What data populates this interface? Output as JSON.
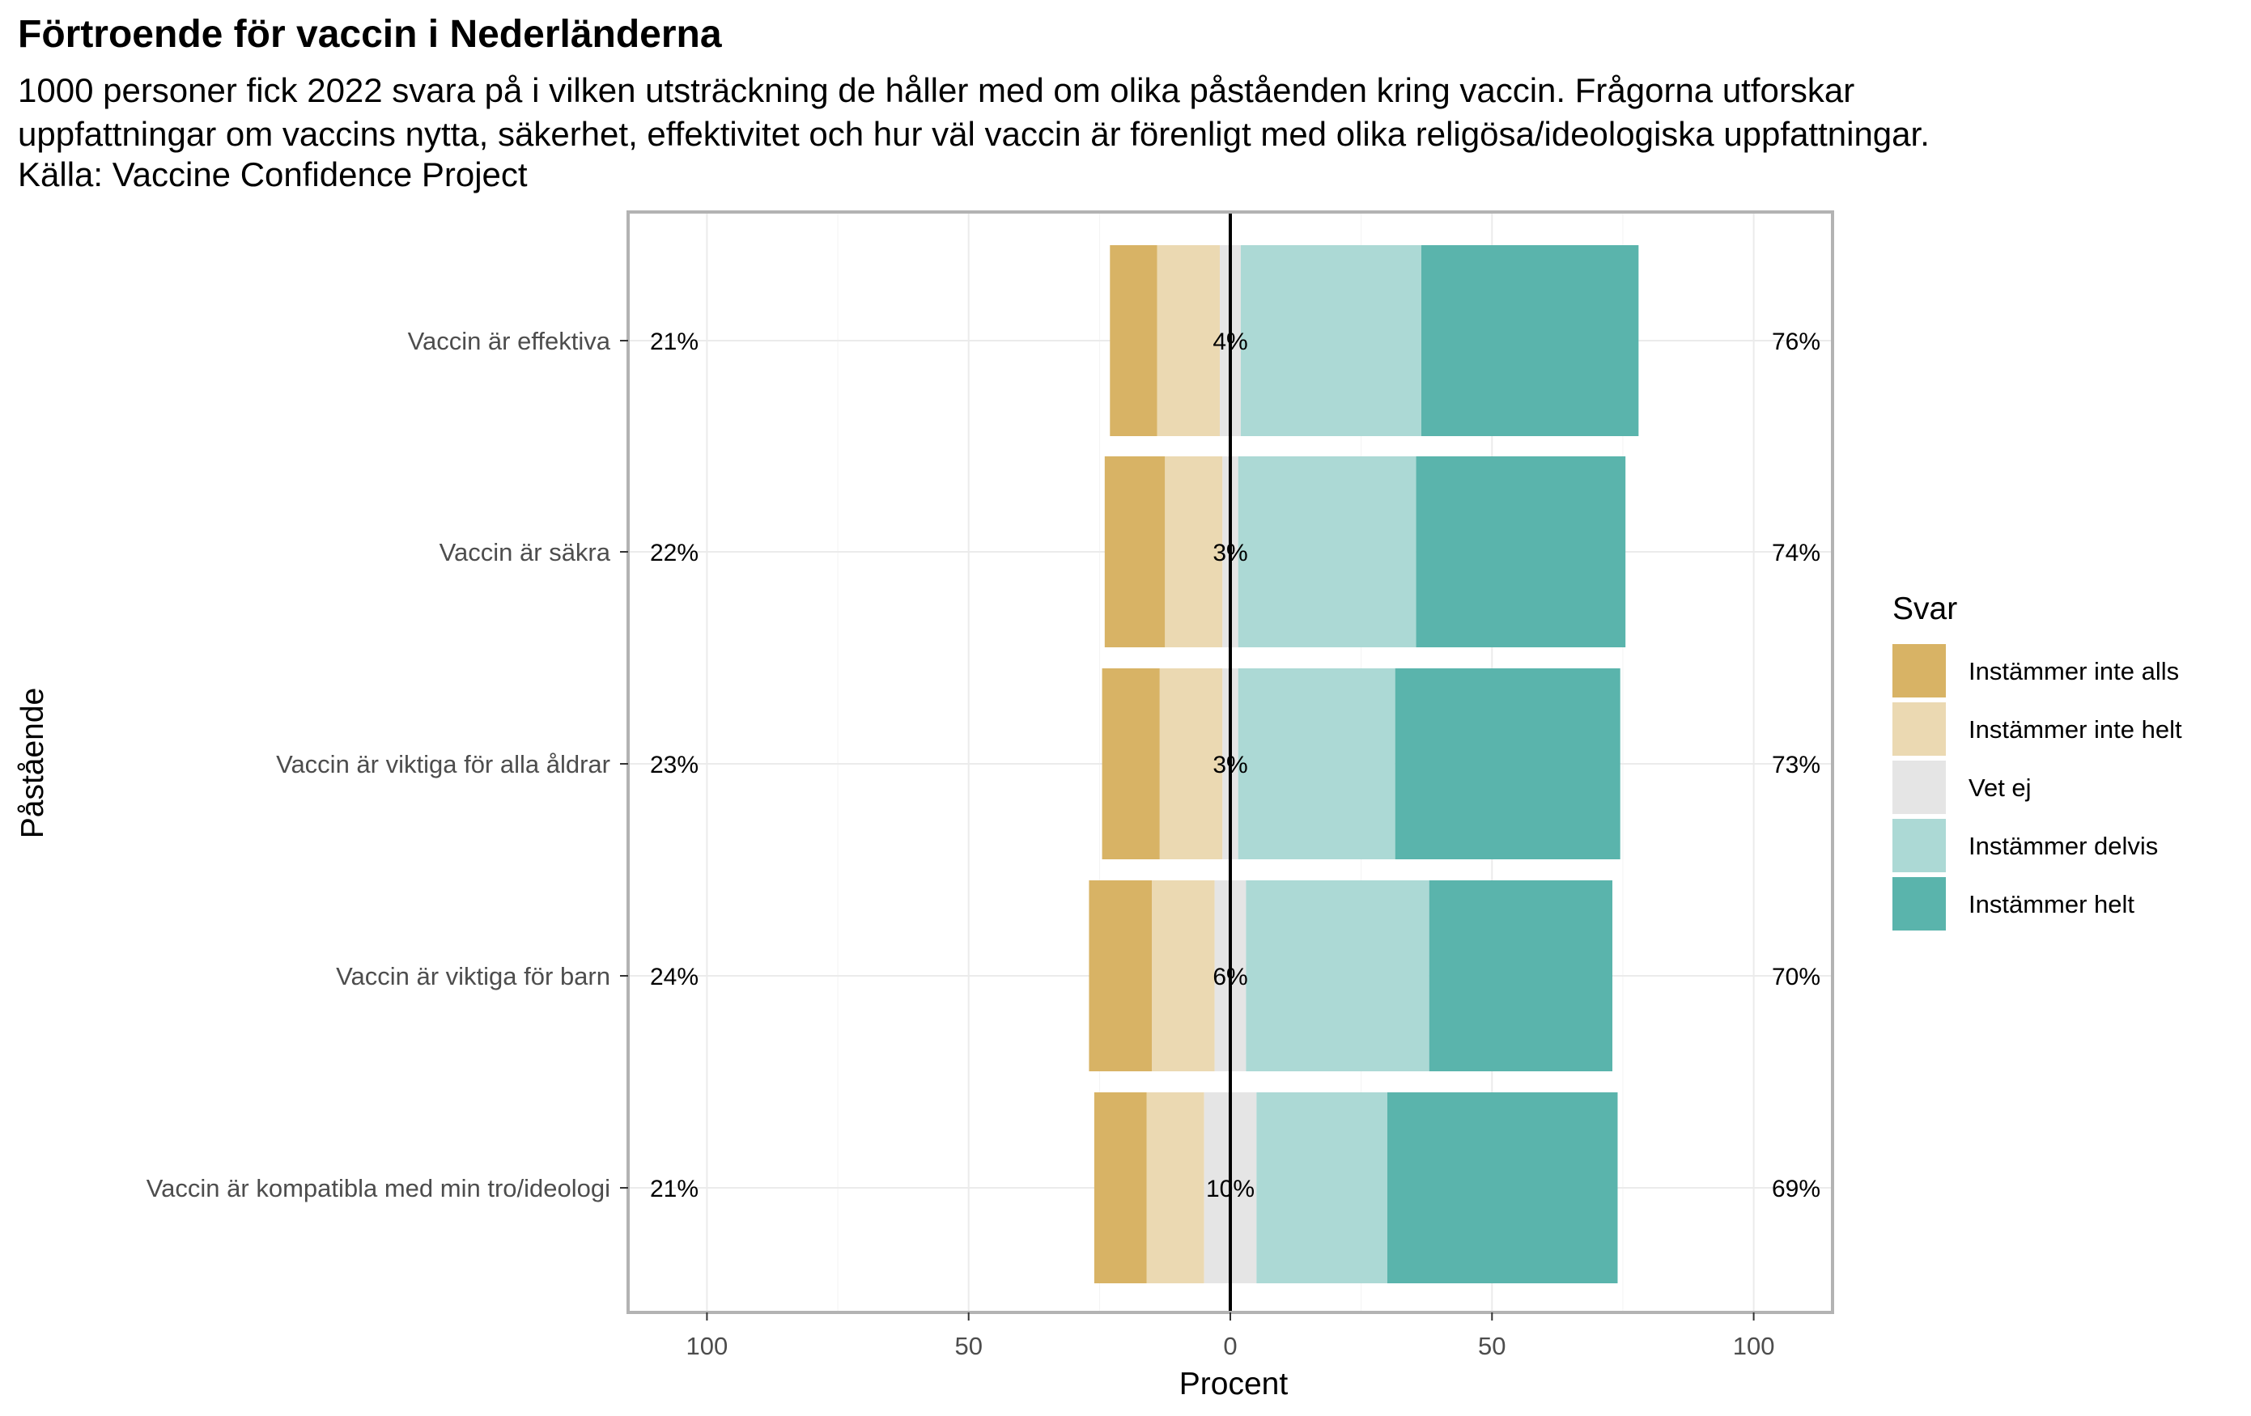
{
  "title": "Förtroende för vaccin i Nederländerna",
  "subtitle_lines": [
    "1000 personer fick 2022 svara på i vilken utsträckning de håller med om olika påståenden kring vaccin. Frågorna utforskar",
    "uppfattningar om vaccins nytta, säkerhet, effektivitet och hur väl vaccin är förenligt med olika religösa/ideologiska uppfattningar.",
    "Källa: Vaccine Confidence Project"
  ],
  "chart_data": {
    "type": "bar",
    "orientation": "horizontal",
    "stacking": "diverging",
    "xlabel": "Procent",
    "ylabel": "Påstående",
    "xlim": [
      -115,
      115
    ],
    "xticks": [
      -100,
      -50,
      0,
      50,
      100
    ],
    "xtick_labels": [
      "100",
      "50",
      "0",
      "50",
      "100"
    ],
    "grid": true,
    "legend_position": "right",
    "legend_title": "Svar",
    "categories": [
      "Vaccin är effektiva",
      "Vaccin är säkra",
      "Vaccin är viktiga för alla åldrar",
      "Vaccin är viktiga för barn",
      "Vaccin är kompatibla med min tro/ideologi"
    ],
    "series": [
      {
        "name": "Instämmer inte alls",
        "color": "#D8B365",
        "side": "negative",
        "values": [
          9,
          11.5,
          11,
          12,
          10
        ]
      },
      {
        "name": "Instämmer inte helt",
        "color": "#EBD9B2",
        "side": "negative",
        "values": [
          12,
          11,
          12,
          12,
          11
        ]
      },
      {
        "name": "Vet ej",
        "color": "#E5E5E5",
        "side": "neutral",
        "values": [
          4,
          3,
          3,
          6,
          10
        ]
      },
      {
        "name": "Instämmer delvis",
        "color": "#ACD9D5",
        "side": "positive",
        "values": [
          34.5,
          34,
          30,
          35,
          25
        ]
      },
      {
        "name": "Instämmer helt",
        "color": "#5AB4AC",
        "side": "positive",
        "values": [
          41.5,
          40,
          43,
          35,
          44
        ]
      }
    ],
    "negative_totals": [
      "21%",
      "22%",
      "23%",
      "24%",
      "21%"
    ],
    "neutral_totals": [
      "4%",
      "3%",
      "3%",
      "6%",
      "10%"
    ],
    "positive_totals": [
      "76%",
      "74%",
      "73%",
      "70%",
      "69%"
    ],
    "zero_line_color": "#000000",
    "panel_border_color": "#B3B3B3"
  }
}
